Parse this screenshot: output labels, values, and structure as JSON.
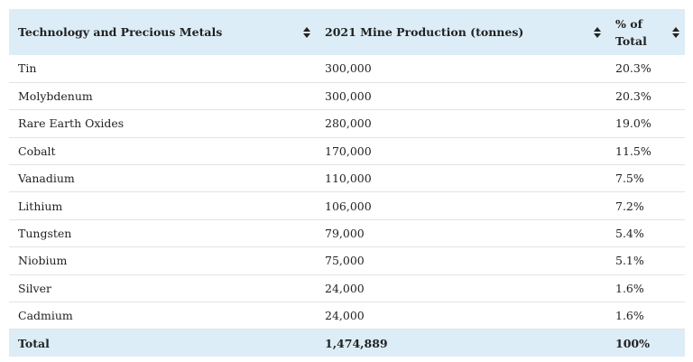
{
  "table": {
    "header": [
      "Technology and Precious Metals",
      "2021 Mine Production (tonnes)",
      "% of Total"
    ],
    "rows": [
      [
        "Tin",
        "300,000",
        "20.3%"
      ],
      [
        "Molybdenum",
        "300,000",
        "20.3%"
      ],
      [
        "Rare Earth Oxides",
        "280,000",
        "19.0%"
      ],
      [
        "Cobalt",
        "170,000",
        "11.5%"
      ],
      [
        "Vanadium",
        "110,000",
        "7.5%"
      ],
      [
        "Lithium",
        "106,000",
        "7.2%"
      ],
      [
        "Tungsten",
        "79,000",
        "5.4%"
      ],
      [
        "Niobium",
        "75,000",
        "5.1%"
      ],
      [
        "Silver",
        "24,000",
        "1.6%"
      ],
      [
        "Cadmium",
        "24,000",
        "1.6%"
      ]
    ],
    "footer": [
      "Total",
      "1,474,889",
      "100%"
    ]
  }
}
